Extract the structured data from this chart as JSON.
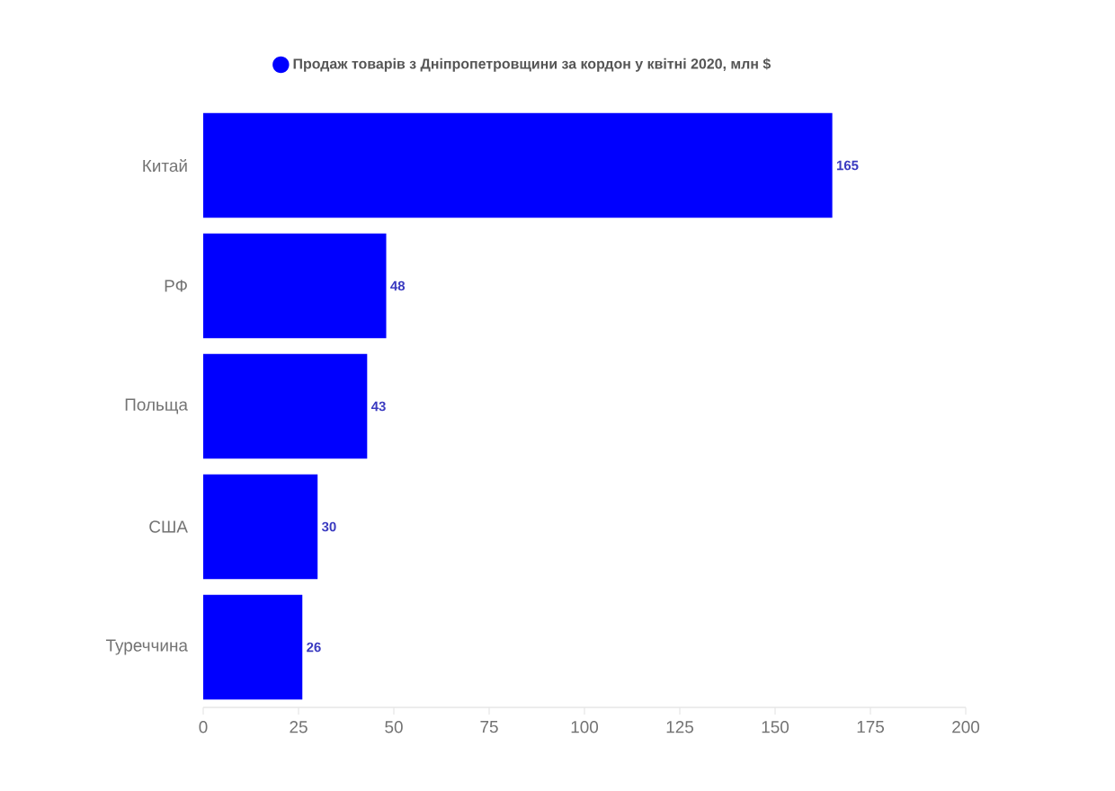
{
  "chart_data": {
    "type": "bar",
    "orientation": "horizontal",
    "categories": [
      "Китай",
      "РФ",
      "Польща",
      "США",
      "Туреччина"
    ],
    "series": [
      {
        "name": "Продаж товарів з Дніпропетровщини за кордон у квітні 2020, млн $",
        "color": "#0000ff",
        "values": [
          165,
          48,
          43,
          30,
          26
        ]
      }
    ],
    "xlim": [
      0,
      200
    ],
    "xticks": [
      0,
      25,
      50,
      75,
      100,
      125,
      150,
      175,
      200
    ],
    "data_labels": true,
    "legend": "top"
  }
}
